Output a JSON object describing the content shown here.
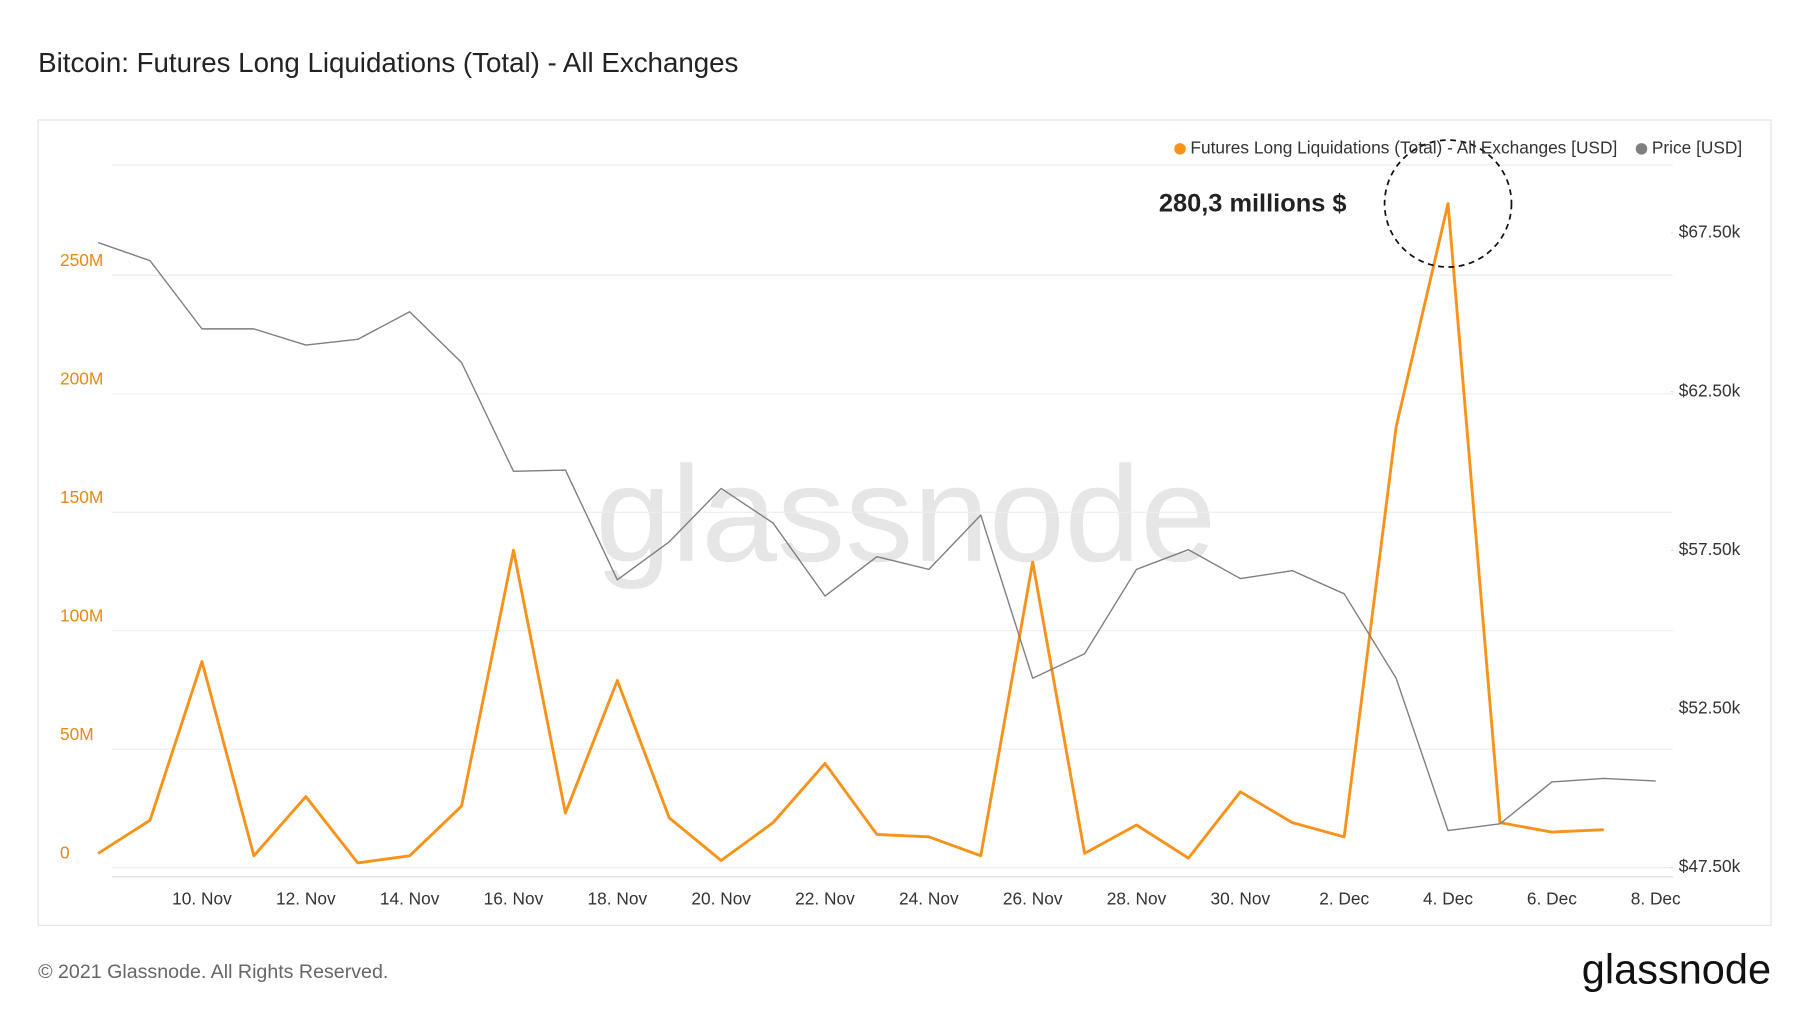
{
  "chart_data": {
    "type": "line",
    "title": "Bitcoin: Futures Long Liquidations (Total) - All Exchanges",
    "watermark": "glassnode",
    "annotation": "280,3 millions $",
    "categories": [
      null,
      null,
      "10. Nov",
      null,
      "12. Nov",
      null,
      "14. Nov",
      null,
      "16. Nov",
      null,
      "18. Nov",
      null,
      "20. Nov",
      null,
      "22. Nov",
      null,
      "24. Nov",
      null,
      "26. Nov",
      null,
      "28. Nov",
      null,
      "30. Nov",
      null,
      "2. Dec",
      null,
      "4. Dec",
      null,
      "6. Dec",
      null,
      "8. Dec"
    ],
    "series": [
      {
        "name": "Futures Long Liquidations (Total) - All Exchanges [USD]",
        "color": "#f7931a",
        "values": [
          6000000,
          20000000,
          87000000,
          5000000,
          30000000,
          2000000,
          5000000,
          26000000,
          134000000,
          23000000,
          79000000,
          21000000,
          3000000,
          19000000,
          44000000,
          14000000,
          13000000,
          5000000,
          129000000,
          6000000,
          18000000,
          4000000,
          32000000,
          19000000,
          13000000,
          186000000,
          280300000,
          19000000,
          15000000,
          16000000,
          null
        ]
      },
      {
        "name": "Price [USD]",
        "color": "#7f7f7f",
        "axis": "y2",
        "values": [
          67200,
          66630,
          64480,
          64480,
          63970,
          64150,
          65020,
          63420,
          59990,
          60030,
          56570,
          57770,
          59450,
          58360,
          56060,
          57300,
          56900,
          58610,
          53470,
          54240,
          56900,
          57520,
          56610,
          56860,
          56130,
          53470,
          48670,
          48880,
          50200,
          50310,
          50230
        ]
      }
    ],
    "ylim": [
      0,
      300000000
    ],
    "yticks": [
      0,
      {
        "value": 50000000,
        "label": "50M"
      },
      {
        "value": 100000000,
        "label": "100M"
      },
      {
        "value": 150000000,
        "label": "150M"
      },
      {
        "value": 200000000,
        "label": "200M"
      },
      {
        "value": 250000000,
        "label": "250M"
      }
    ],
    "y2lim": [
      47500,
      69900
    ],
    "y2ticks": [
      {
        "value": 47500,
        "label": "$47.50k"
      },
      {
        "value": 52500,
        "label": "$52.50k"
      },
      {
        "value": 57500,
        "label": "$57.50k"
      },
      {
        "value": 62500,
        "label": "$62.50k"
      },
      {
        "value": 67500,
        "label": "$67.50k"
      }
    ],
    "grid": true,
    "legend": "top-right"
  },
  "footer": {
    "copyright": "© 2021 Glassnode. All Rights Reserved.",
    "logo": "glassnode"
  }
}
